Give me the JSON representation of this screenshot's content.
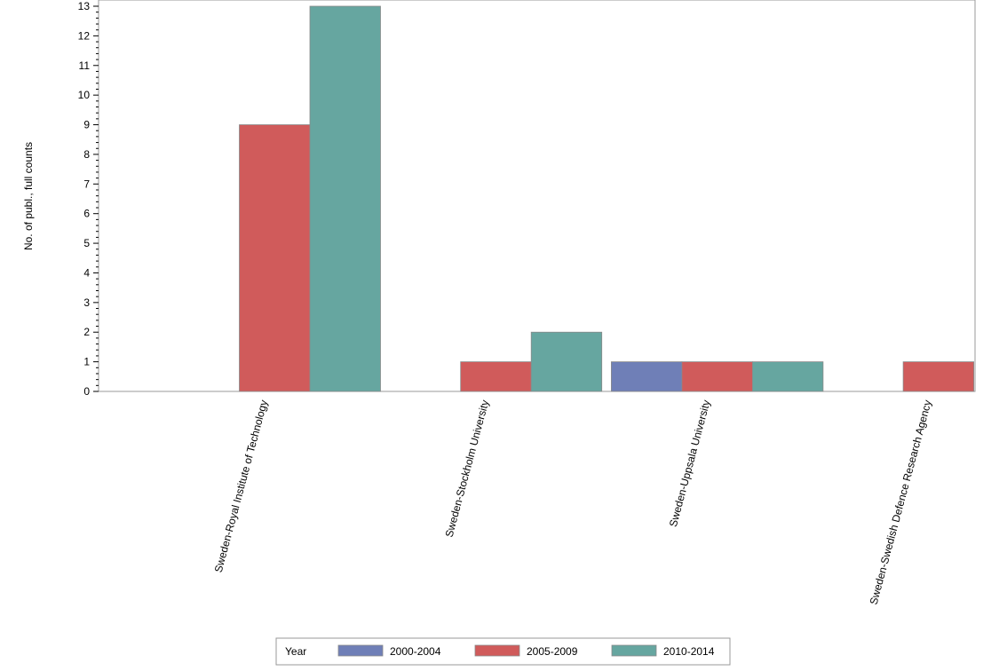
{
  "chart_data": {
    "type": "bar",
    "ylabel": "No. of publ., full counts",
    "ylim": [
      0,
      13
    ],
    "yticks": [
      0,
      1,
      2,
      3,
      4,
      5,
      6,
      7,
      8,
      9,
      10,
      11,
      12,
      13
    ],
    "categories": [
      "Sweden-Royal Institute of Technology",
      "Sweden-Stockholm University",
      "Sweden-Uppsala University",
      "Sweden-Swedish Defence Research Agency"
    ],
    "series": [
      {
        "name": "2000-2004",
        "color": "#6f7fb7",
        "values": [
          0,
          0,
          1,
          0
        ]
      },
      {
        "name": "2005-2009",
        "color": "#d05b5b",
        "values": [
          9,
          1,
          1,
          1
        ]
      },
      {
        "name": "2010-2014",
        "color": "#66a6a0",
        "values": [
          13,
          2,
          1,
          0
        ]
      }
    ],
    "legend": {
      "title": "Year",
      "position": "bottom"
    }
  }
}
